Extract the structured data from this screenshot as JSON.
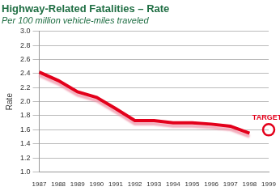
{
  "chart_data": {
    "type": "line",
    "title": "Highway-Related Fatalities – Rate",
    "subtitle": "Per 100 million vehicle-miles traveled",
    "y_label": "Rate",
    "categories": [
      "1987",
      "1988",
      "1989",
      "1990",
      "1991",
      "1992",
      "1993",
      "1994",
      "1995",
      "1996",
      "1997",
      "1998",
      "1999"
    ],
    "values": [
      2.42,
      2.3,
      2.14,
      2.06,
      1.9,
      1.73,
      1.73,
      1.7,
      1.7,
      1.68,
      1.65,
      1.55,
      null
    ],
    "color": "#e3001b",
    "ylim": [
      1.0,
      3.0
    ],
    "yticks": [
      {
        "value": 1,
        "label": "1.0"
      },
      {
        "value": 1.2,
        "label": "1.2"
      },
      {
        "value": 1.4,
        "label": "1.4"
      },
      {
        "value": 1.6,
        "label": "1.6"
      },
      {
        "value": 1.8,
        "label": "1.8"
      },
      {
        "value": 2,
        "label": "2.0"
      },
      {
        "value": 2.2,
        "label": "2.2"
      },
      {
        "value": 2.4,
        "label": "2.4"
      },
      {
        "value": 2.6,
        "label": "2.6"
      },
      {
        "value": 2.8,
        "label": "2.8"
      },
      {
        "value": 3,
        "label": "3.0"
      }
    ],
    "grid": true,
    "annotations": [
      {
        "text": "TARGET",
        "x": "1999",
        "y": 1.6,
        "marker": "circle"
      }
    ]
  }
}
